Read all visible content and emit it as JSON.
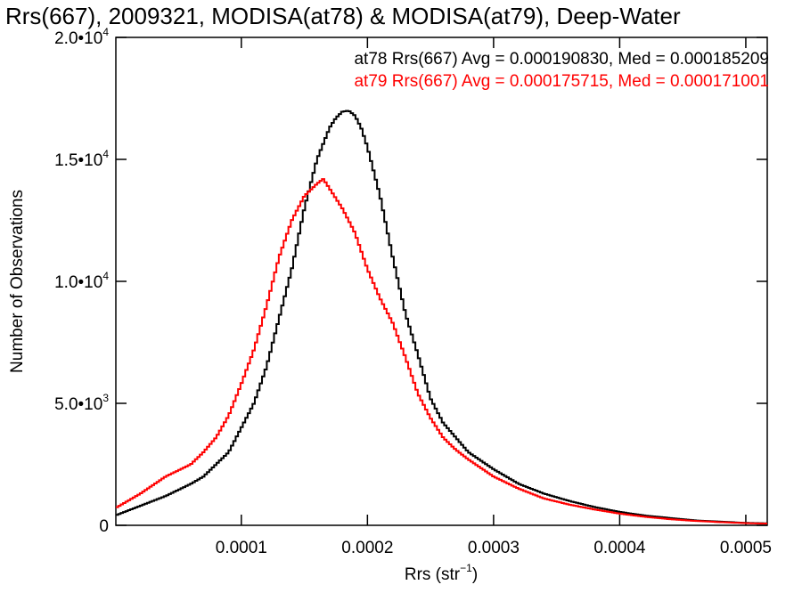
{
  "chart_data": {
    "type": "line",
    "title": "Rrs(667), 2009321, MODISA(at78) & MODISA(at79), Deep-Water",
    "xlabel": {
      "text": "Rrs (str",
      "sup": "−1",
      "suffix": ")"
    },
    "ylabel": "Number of Observations",
    "xlim": [
      5e-07,
      0.000517
    ],
    "ylim": [
      0,
      20000
    ],
    "xticks": [
      {
        "value": 0.0001,
        "label": "0.0001"
      },
      {
        "value": 0.0002,
        "label": "0.0002"
      },
      {
        "value": 0.0003,
        "label": "0.0003"
      },
      {
        "value": 0.0004,
        "label": "0.0004"
      },
      {
        "value": 0.0005,
        "label": "0.0005"
      }
    ],
    "yticks": [
      {
        "value": 0,
        "mant": "0",
        "exp": ""
      },
      {
        "value": 5000,
        "mant": "5.0•10",
        "exp": "3"
      },
      {
        "value": 10000,
        "mant": "1.0•10",
        "exp": "4"
      },
      {
        "value": 15000,
        "mant": "1.5•10",
        "exp": "4"
      },
      {
        "value": 20000,
        "mant": "2.0•10",
        "exp": "4"
      }
    ],
    "legend": [
      {
        "text": "at78 Rrs(667) Avg = 0.000190830, Med = 0.000185209",
        "color": "#000000"
      },
      {
        "text": "at79 Rrs(667) Avg = 0.000175715, Med = 0.000171001",
        "color": "#ff0000"
      }
    ],
    "legend_position": "top-right",
    "series": [
      {
        "color": "#000000",
        "style": "histogram-step",
        "x": [
          0.0,
          2e-05,
          4e-05,
          6e-05,
          7e-05,
          8e-05,
          9e-05,
          0.0001,
          0.00011,
          0.00012,
          0.00013,
          0.00014,
          0.00015,
          0.00016,
          0.00017,
          0.000175,
          0.00018,
          0.000185,
          0.00019,
          0.000195,
          0.0002,
          0.00021,
          0.00022,
          0.00023,
          0.00024,
          0.00025,
          0.00026,
          0.00027,
          0.00028,
          0.0003,
          0.00032,
          0.00034,
          0.00036,
          0.00038,
          0.0004,
          0.00042,
          0.00044,
          0.00046,
          0.00048,
          0.0005,
          0.000517
        ],
        "y": [
          400,
          800,
          1200,
          1700,
          2000,
          2500,
          3000,
          4000,
          5000,
          6500,
          8500,
          10500,
          13000,
          15000,
          16300,
          16700,
          16950,
          17000,
          16800,
          16300,
          15500,
          13500,
          11000,
          8700,
          7000,
          5200,
          4200,
          3600,
          3000,
          2300,
          1700,
          1300,
          1000,
          750,
          550,
          400,
          300,
          200,
          150,
          100,
          80
        ]
      },
      {
        "color": "#ff0000",
        "style": "histogram-step",
        "x": [
          0.0,
          2e-05,
          4e-05,
          6e-05,
          7e-05,
          8e-05,
          9e-05,
          0.0001,
          0.00011,
          0.00012,
          0.00013,
          0.00014,
          0.00015,
          0.00016,
          0.000165,
          0.00017,
          0.000175,
          0.00018,
          0.00019,
          0.0002,
          0.00021,
          0.00022,
          0.00023,
          0.00024,
          0.00025,
          0.00026,
          0.00027,
          0.00028,
          0.0003,
          0.00032,
          0.00034,
          0.00036,
          0.00038,
          0.0004,
          0.00042,
          0.00044,
          0.00046,
          0.00048,
          0.0005,
          0.000517
        ],
        "y": [
          700,
          1300,
          2000,
          2500,
          3000,
          3600,
          4500,
          5800,
          7200,
          9000,
          11000,
          12500,
          13500,
          14000,
          14200,
          13800,
          13400,
          13000,
          12000,
          10500,
          9300,
          8300,
          6900,
          5400,
          4400,
          3600,
          3100,
          2700,
          2000,
          1500,
          1100,
          850,
          650,
          480,
          350,
          250,
          180,
          130,
          90,
          70
        ]
      }
    ]
  }
}
